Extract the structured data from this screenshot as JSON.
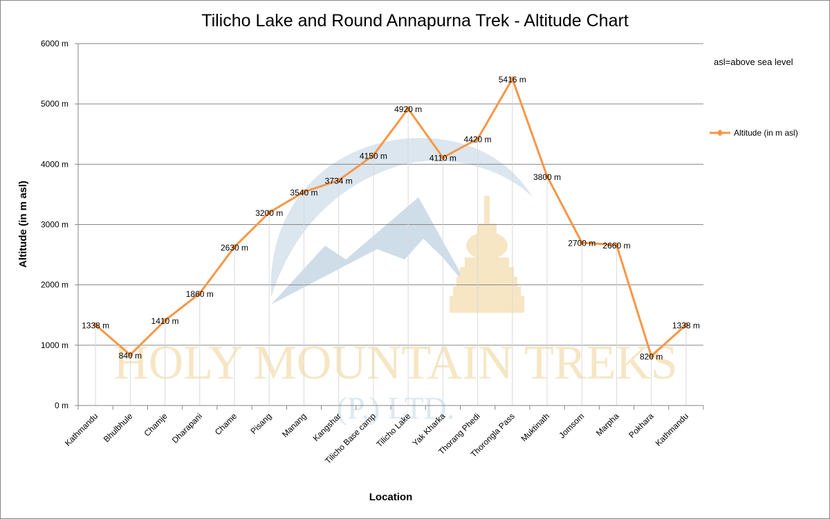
{
  "note": "asl=above sea level",
  "watermark": {
    "line1": "HOLY MOUNTAIN TREKS",
    "line2": "(P.) LTD."
  },
  "colors": {
    "series": "#F79646",
    "grid": "#868686",
    "axis": "#868686",
    "watermark_blue": "#cfdde9",
    "watermark_gold": "#f6e6c4"
  },
  "chart_data": {
    "type": "line",
    "title": "Tilicho Lake and Round Annapurna Trek - Altitude Chart",
    "xlabel": "Location",
    "ylabel": "Altitude (in m asl)",
    "ylim": [
      0,
      6000
    ],
    "yticks": [
      0,
      1000,
      2000,
      3000,
      4000,
      5000,
      6000
    ],
    "ytick_labels": [
      "0 m",
      "1000 m",
      "2000 m",
      "3000 m",
      "4000 m",
      "5000 m",
      "6000 m"
    ],
    "grid": "horizontal",
    "legend_position": "right",
    "categories": [
      "Kathmandu",
      "Bhulbhule",
      "Chamje",
      "Dharapani",
      "Chame",
      "Pisang",
      "Manang",
      "Kangshar",
      "Tilicho Base camp",
      "Tilicho Lake",
      "Yak Kharka",
      "Thorang Phedi",
      "Thorongla Pass",
      "Muktinath",
      "Jomsom",
      "Marpha",
      "Pokhara",
      "Kathmandu"
    ],
    "series": [
      {
        "name": "Altitude (in  m asl)",
        "values": [
          1338,
          840,
          1410,
          1860,
          2630,
          3200,
          3540,
          3734,
          4150,
          4920,
          4110,
          4420,
          5416,
          3800,
          2700,
          2660,
          820,
          1338
        ],
        "data_labels": [
          "1338 m",
          "840 m",
          "1410 m",
          "1860 m",
          "2630 m",
          "3200 m",
          "3540 m",
          "3734 m",
          "4150 m",
          "4920 m",
          "4110 m",
          "4420 m",
          "5416 m",
          "3800 m",
          "2700 m",
          "2660 m",
          "820 m",
          "1338 m"
        ]
      }
    ]
  }
}
